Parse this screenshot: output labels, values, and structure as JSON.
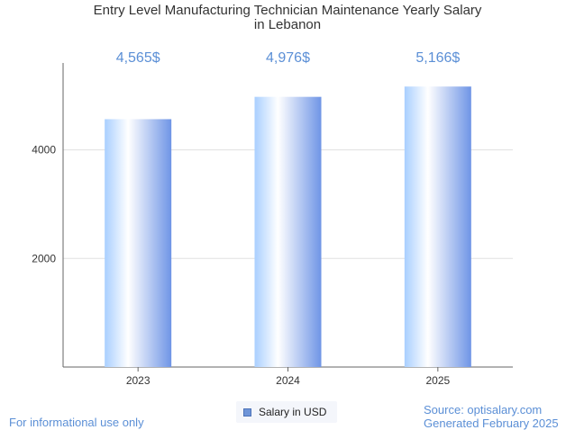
{
  "chart_data": {
    "type": "bar",
    "title": "Entry Level Manufacturing Technician Maintenance Yearly Salary in Lebanon",
    "title_lines": [
      "Entry Level Manufacturing Technician Maintenance Yearly Salary",
      "in Lebanon"
    ],
    "categories": [
      "2023",
      "2024",
      "2025"
    ],
    "series": [
      {
        "name": "Salary in USD",
        "values": [
          4565,
          4976,
          5166
        ],
        "labels": [
          "4,565$",
          "4,976$",
          "5,166$"
        ]
      }
    ],
    "xlabel": "",
    "ylabel": "",
    "ylim": [
      0,
      5600
    ],
    "yticks": [
      2000,
      4000
    ],
    "grid": true,
    "legend_position": "bottom-center",
    "colors": {
      "bar_dark": "#6f95e6",
      "bar_light": "#ffffff",
      "bar_mid": "#b8d9ff",
      "label": "#5b8fd6"
    }
  },
  "footer": {
    "left": "For informational use only",
    "source": "Source: optisalary.com",
    "generated": "Generated February 2025"
  }
}
